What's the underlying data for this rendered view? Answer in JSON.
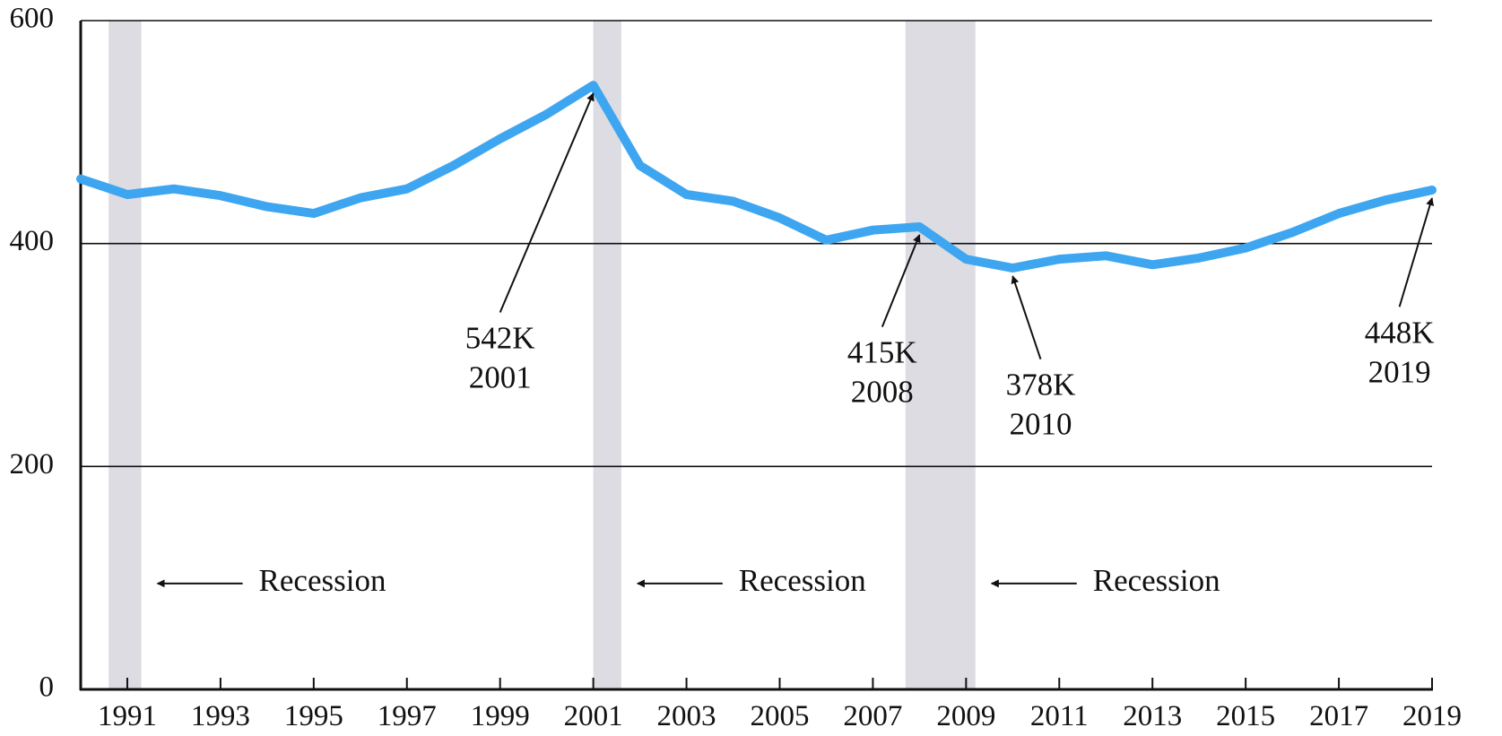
{
  "chart_data": {
    "type": "line",
    "title": "",
    "xlabel": "",
    "ylabel": "",
    "xlim": [
      1990,
      2019
    ],
    "ylim": [
      0,
      600
    ],
    "y_ticks": [
      0,
      200,
      400,
      600
    ],
    "x_ticks": [
      1991,
      1993,
      1995,
      1997,
      1999,
      2001,
      2003,
      2005,
      2007,
      2009,
      2011,
      2013,
      2015,
      2017,
      2019
    ],
    "grid": "horizontal",
    "legend": "none",
    "series": [
      {
        "color": "#3ea6f0",
        "x": [
          1990,
          1991,
          1992,
          1993,
          1994,
          1995,
          1996,
          1997,
          1998,
          1999,
          2000,
          2001,
          2002,
          2003,
          2004,
          2005,
          2006,
          2007,
          2008,
          2009,
          2010,
          2011,
          2012,
          2013,
          2014,
          2015,
          2016,
          2017,
          2018,
          2019
        ],
        "values": [
          458,
          444,
          449,
          443,
          433,
          427,
          441,
          449,
          470,
          494,
          516,
          542,
          470,
          444,
          438,
          423,
          403,
          412,
          415,
          386,
          378,
          386,
          389,
          381,
          387,
          396,
          410,
          427,
          439,
          448
        ]
      }
    ],
    "recessions": [
      {
        "start": 1990.6,
        "end": 1991.3
      },
      {
        "start": 2001.0,
        "end": 2001.6
      },
      {
        "start": 2007.7,
        "end": 2009.2
      }
    ],
    "recession_color": "#dcdce2",
    "recession_labels": [
      {
        "text": "Recession",
        "x_start": 1991.3,
        "y": 95
      },
      {
        "text": "Recession",
        "x_start": 2001.6,
        "y": 95
      },
      {
        "text": "Recession",
        "x_start": 2009.2,
        "y": 95
      }
    ],
    "annotations": [
      {
        "value_label": "542K",
        "year_label": "2001",
        "x": 2001,
        "y": 542,
        "label_x": 1999.0,
        "label_y": 335
      },
      {
        "value_label": "415K",
        "year_label": "2008",
        "x": 2008,
        "y": 415,
        "label_x": 2007.2,
        "label_y": 322
      },
      {
        "value_label": "378K",
        "year_label": "2010",
        "x": 2010,
        "y": 378,
        "label_x": 2010.6,
        "label_y": 293
      },
      {
        "value_label": "448K",
        "year_label": "2019",
        "x": 2019,
        "y": 448,
        "label_x": 2018.3,
        "label_y": 340
      }
    ]
  }
}
